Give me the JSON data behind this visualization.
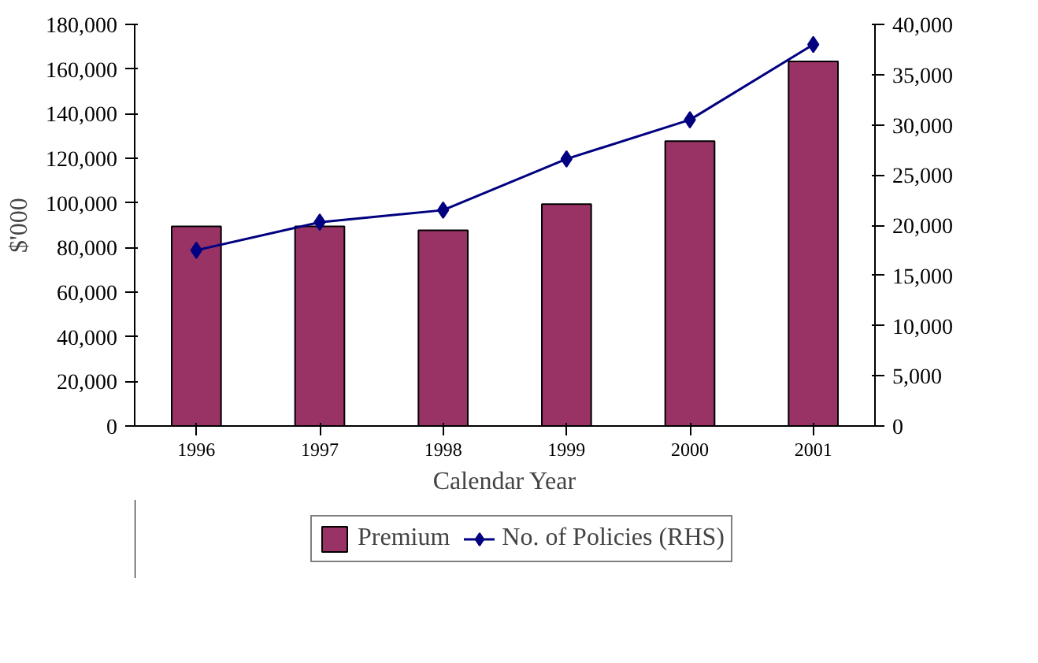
{
  "chart_data": {
    "type": "bar",
    "categories": [
      "1996",
      "1997",
      "1998",
      "1999",
      "2000",
      "2001"
    ],
    "series": [
      {
        "name": "Premium",
        "type": "bar",
        "color": "#993366",
        "values": [
          89500,
          89500,
          87700,
          99400,
          127700,
          163400
        ]
      },
      {
        "name": "No. of Policies (RHS)",
        "type": "line",
        "axis": "y2",
        "color": "#000080",
        "values": [
          17500,
          20300,
          21500,
          26600,
          30500,
          38000
        ]
      }
    ],
    "xlabel": "Calendar Year",
    "ylabel": "$'000",
    "ylim": [
      0,
      180000
    ],
    "yticks": [
      {
        "value": 0,
        "label": "0"
      },
      {
        "value": 20000,
        "label": "20,000"
      },
      {
        "value": 40000,
        "label": "40,000"
      },
      {
        "value": 60000,
        "label": "60,000"
      },
      {
        "value": 80000,
        "label": "80,000"
      },
      {
        "value": 100000,
        "label": "100,000"
      },
      {
        "value": 120000,
        "label": "120,000"
      },
      {
        "value": 140000,
        "label": "140,000"
      },
      {
        "value": 160000,
        "label": "160,000"
      },
      {
        "value": 180000,
        "label": "180,000"
      }
    ],
    "y2lim": [
      0,
      40000
    ],
    "y2ticks": [
      {
        "value": 0,
        "label": "0"
      },
      {
        "value": 5000,
        "label": "5,000"
      },
      {
        "value": 10000,
        "label": "10,000"
      },
      {
        "value": 15000,
        "label": "15,000"
      },
      {
        "value": 20000,
        "label": "20,000"
      },
      {
        "value": 25000,
        "label": "25,000"
      },
      {
        "value": 30000,
        "label": "30,000"
      },
      {
        "value": 35000,
        "label": "35,000"
      },
      {
        "value": 40000,
        "label": "40,000"
      }
    ],
    "marker": "diamond",
    "line_style": "solid",
    "grid": false,
    "legend": "bottom"
  }
}
